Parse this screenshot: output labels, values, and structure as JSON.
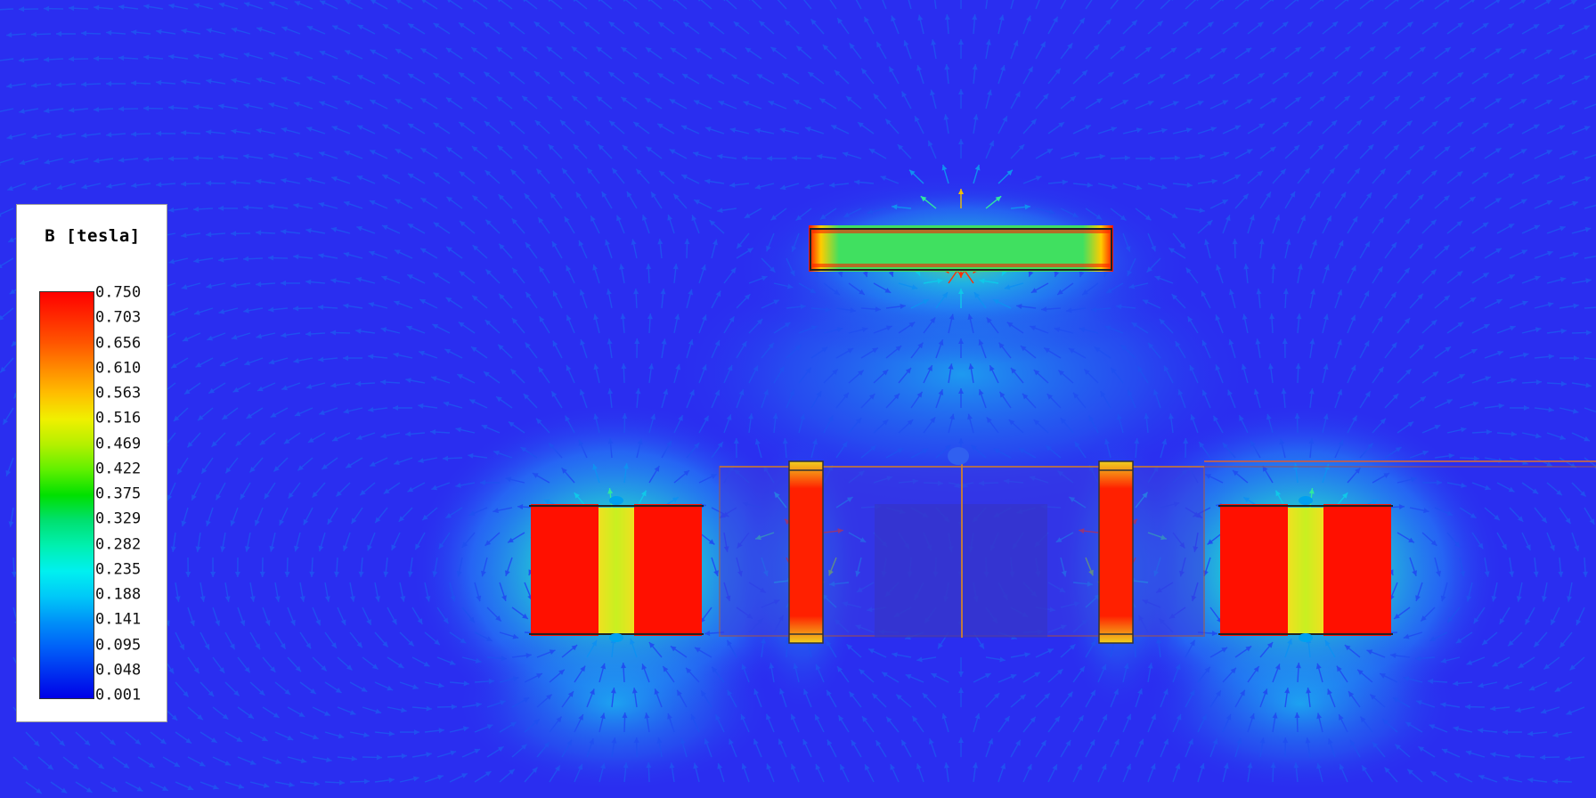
{
  "legend": {
    "title": "B [tesla]",
    "ticks": [
      "0.750",
      "0.703",
      "0.656",
      "0.610",
      "0.563",
      "0.516",
      "0.469",
      "0.422",
      "0.375",
      "0.329",
      "0.282",
      "0.235",
      "0.188",
      "0.141",
      "0.095",
      "0.048",
      "0.001"
    ],
    "colors": [
      "#ff0000",
      "#ff2a00",
      "#ff5500",
      "#ff8a00",
      "#ffbe00",
      "#f0f000",
      "#b4f000",
      "#60f000",
      "#00e000",
      "#00e070",
      "#00f0b0",
      "#00f0f0",
      "#00c8f8",
      "#0090f8",
      "#0060f8",
      "#0030f0",
      "#0000e8"
    ]
  },
  "field_plot": {
    "quantity": "magnetic flux density vectors",
    "background_color": "#2a2ef0"
  }
}
